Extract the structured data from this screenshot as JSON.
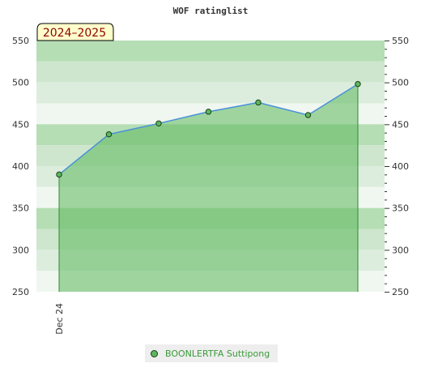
{
  "chart_data": {
    "type": "area",
    "title": "WOF ratinglist",
    "period_badge": "2024–2025",
    "ylim": [
      250,
      550
    ],
    "y_ticks": [
      250,
      300,
      350,
      400,
      450,
      500,
      550
    ],
    "x_tick_labels": [
      "Dec 24"
    ],
    "series": [
      {
        "name": "BOONLERTFA Suttipong",
        "values": [
          390,
          438,
          451,
          465,
          476,
          461,
          498
        ]
      }
    ],
    "colors": {
      "fill": "#5cb85c",
      "line": "#4a90d9",
      "marker": "#5cb85c",
      "marker_edge": "#1a3d1a",
      "band_light": "#f0f7f0",
      "band_dark": "#cde6cd",
      "badge_bg": "#ffffcc",
      "legend_text": "#3a9a3a"
    },
    "legend_position": "bottom",
    "grid": "horizontal-bands"
  }
}
